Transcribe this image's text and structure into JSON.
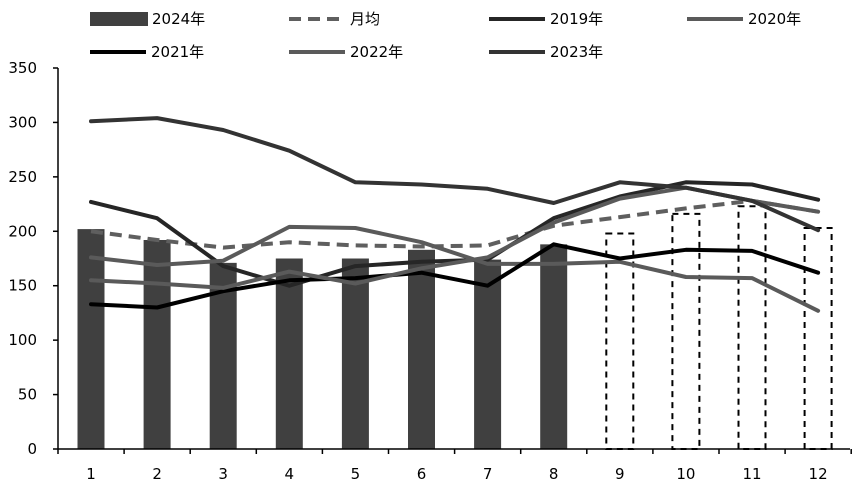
{
  "chart_data": {
    "type": "bar",
    "title": "",
    "xlabel": "",
    "ylabel": "",
    "categories": [
      "1",
      "2",
      "3",
      "4",
      "5",
      "6",
      "7",
      "8",
      "9",
      "10",
      "11",
      "12"
    ],
    "ylim": [
      0,
      350
    ],
    "yticks": [
      0,
      50,
      100,
      150,
      200,
      250,
      300,
      350
    ],
    "legend_position": "top",
    "bar_series": {
      "name": "2024年",
      "color": "#404040",
      "values": [
        202,
        192,
        171,
        175,
        175,
        183,
        174,
        188,
        198,
        216,
        223,
        203
      ],
      "projected_from_index": 8
    },
    "series": [
      {
        "name": "月均",
        "color": "#5f5f5f",
        "style": "dashed",
        "values": [
          200,
          192,
          185,
          190,
          187,
          186,
          187,
          205,
          213,
          221,
          228,
          218
        ]
      },
      {
        "name": "2019年",
        "color": "#262626",
        "style": "solid",
        "values": [
          227,
          212,
          168,
          150,
          168,
          172,
          174,
          212,
          232,
          245,
          243,
          229
        ]
      },
      {
        "name": "2020年",
        "color": "#5a5a5a",
        "style": "solid",
        "values": [
          176,
          169,
          173,
          204,
          203,
          190,
          170,
          170,
          172,
          158,
          157,
          127
        ]
      },
      {
        "name": "2021年",
        "color": "#000000",
        "style": "solid",
        "values": [
          133,
          130,
          145,
          155,
          157,
          162,
          150,
          188,
          175,
          183,
          182,
          162
        ]
      },
      {
        "name": "2022年",
        "color": "#5a5a5a",
        "style": "solid",
        "values": [
          155,
          152,
          148,
          163,
          152,
          166,
          176,
          208,
          230,
          240,
          228,
          218
        ]
      },
      {
        "name": "2023年",
        "color": "#333333",
        "style": "solid",
        "values": [
          301,
          304,
          293,
          274,
          245,
          243,
          239,
          226,
          245,
          240,
          228,
          201
        ]
      }
    ]
  }
}
